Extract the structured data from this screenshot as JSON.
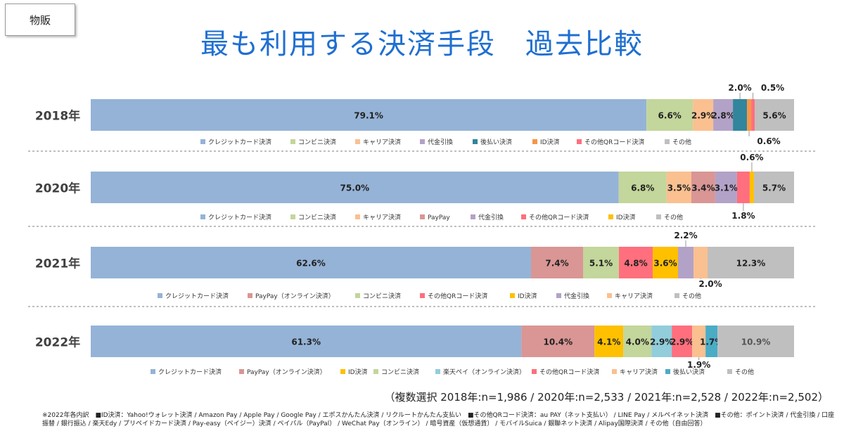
{
  "badge": "物販",
  "title": "最も利用する決済手段　過去比較",
  "note": "（複数選択 2018年:n=1,986 / 2020年:n=2,533 / 2021年:n=2,528 / 2022年:n=2,502）",
  "footnote": "※2022年各内訳　■ID決済：Yahoo!ウォレット決済 / Amazon Pay / Apple Pay / Google Pay / エポスかんたん決済 / リクルートかんたん支払い　■その他QRコード決済：au PAY（ネット支払い） / LINE Pay / メルペイネット決済　■その他：ポイント決済 / 代金引換 / 口座振替 / 銀行振込 / 楽天Edy / プリペイドカード決済 / Pay-easy（ペイジー）決済 / ペイパル（PayPal） / WeChat Pay（オンライン） / 暗号資産（仮想通貨） / モバイルSuica / 銀聯ネット決済 / Alipay国際決済 / その他（自由回答）",
  "colors": {
    "credit": "#95b3d7",
    "convenience": "#c3d69b",
    "carrier": "#fac090",
    "cod": "#b3a2c7",
    "deferred": "#31859c",
    "id": "#f79646",
    "id2": "#ffc000",
    "otherqr": "#ff6f7d",
    "paypay": "#d99694",
    "rakuten": "#92cddc",
    "other": "#bfbfbf",
    "deferred22": "#4bacc6"
  },
  "chart_data": {
    "type": "bar",
    "orientation": "horizontal-stacked",
    "xlim": [
      0,
      100
    ],
    "rows": [
      {
        "label": "2018年",
        "segments": [
          {
            "name": "クレジットカード決済",
            "value": 79.1,
            "label": "79.1%",
            "color": "credit"
          },
          {
            "name": "コンビニ決済",
            "value": 6.6,
            "label": "6.6%",
            "color": "convenience"
          },
          {
            "name": "キャリア決済",
            "value": 2.9,
            "label": "2.9%",
            "color": "carrier"
          },
          {
            "name": "代金引換",
            "value": 2.8,
            "label": "2.8%",
            "color": "cod"
          },
          {
            "name": "後払い決済",
            "value": 2.0,
            "label": "2.0%",
            "color": "deferred"
          },
          {
            "name": "ID決済",
            "value": 0.6,
            "label": "0.6%",
            "color": "id"
          },
          {
            "name": "その他QRコード決済",
            "value": 0.5,
            "label": "0.5%",
            "color": "otherqr"
          },
          {
            "name": "その他",
            "value": 5.6,
            "label": "5.6%",
            "color": "other"
          }
        ]
      },
      {
        "label": "2020年",
        "segments": [
          {
            "name": "クレジットカード決済",
            "value": 75.0,
            "label": "75.0%",
            "color": "credit"
          },
          {
            "name": "コンビニ決済",
            "value": 6.8,
            "label": "6.8%",
            "color": "convenience"
          },
          {
            "name": "キャリア決済",
            "value": 3.5,
            "label": "3.5%",
            "color": "carrier"
          },
          {
            "name": "PayPay",
            "value": 3.4,
            "label": "3.4%",
            "color": "paypay"
          },
          {
            "name": "代金引換",
            "value": 3.1,
            "label": "3.1%",
            "color": "cod"
          },
          {
            "name": "その他QRコード決済",
            "value": 1.8,
            "label": "1.8%",
            "color": "otherqr"
          },
          {
            "name": "ID決済",
            "value": 0.6,
            "label": "0.6%",
            "color": "id2"
          },
          {
            "name": "その他",
            "value": 5.7,
            "label": "5.7%",
            "color": "other"
          }
        ]
      },
      {
        "label": "2021年",
        "segments": [
          {
            "name": "クレジットカード決済",
            "value": 62.6,
            "label": "62.6%",
            "color": "credit"
          },
          {
            "name": "PayPay（オンライン決済）",
            "value": 7.4,
            "label": "7.4%",
            "color": "paypay"
          },
          {
            "name": "コンビニ決済",
            "value": 5.1,
            "label": "5.1%",
            "color": "convenience"
          },
          {
            "name": "その他QRコード決済",
            "value": 4.8,
            "label": "4.8%",
            "color": "otherqr"
          },
          {
            "name": "ID決済",
            "value": 3.6,
            "label": "3.6%",
            "color": "id2"
          },
          {
            "name": "代金引換",
            "value": 2.2,
            "label": "2.2%",
            "color": "cod"
          },
          {
            "name": "キャリア決済",
            "value": 2.0,
            "label": "2.0%",
            "color": "carrier"
          },
          {
            "name": "その他",
            "value": 12.3,
            "label": "12.3%",
            "color": "other"
          }
        ]
      },
      {
        "label": "2022年",
        "segments": [
          {
            "name": "クレジットカード決済",
            "value": 61.3,
            "label": "61.3%",
            "color": "credit"
          },
          {
            "name": "PayPay（オンライン決済）",
            "value": 10.4,
            "label": "10.4%",
            "color": "paypay"
          },
          {
            "name": "ID決済",
            "value": 4.1,
            "label": "4.1%",
            "color": "id2"
          },
          {
            "name": "コンビニ決済",
            "value": 4.0,
            "label": "4.0%",
            "color": "convenience"
          },
          {
            "name": "楽天ペイ（オンライン決済）",
            "value": 2.9,
            "label": "2.9%",
            "color": "rakuten"
          },
          {
            "name": "その他QRコード決済",
            "value": 2.9,
            "label": "2.9%",
            "color": "otherqr"
          },
          {
            "name": "キャリア決済",
            "value": 1.9,
            "label": "1.9%",
            "color": "carrier"
          },
          {
            "name": "後払い決済",
            "value": 1.7,
            "label": "1.7%",
            "color": "deferred22"
          },
          {
            "name": "その他",
            "value": 10.9,
            "label": "10.9%",
            "color": "other"
          }
        ]
      }
    ]
  }
}
